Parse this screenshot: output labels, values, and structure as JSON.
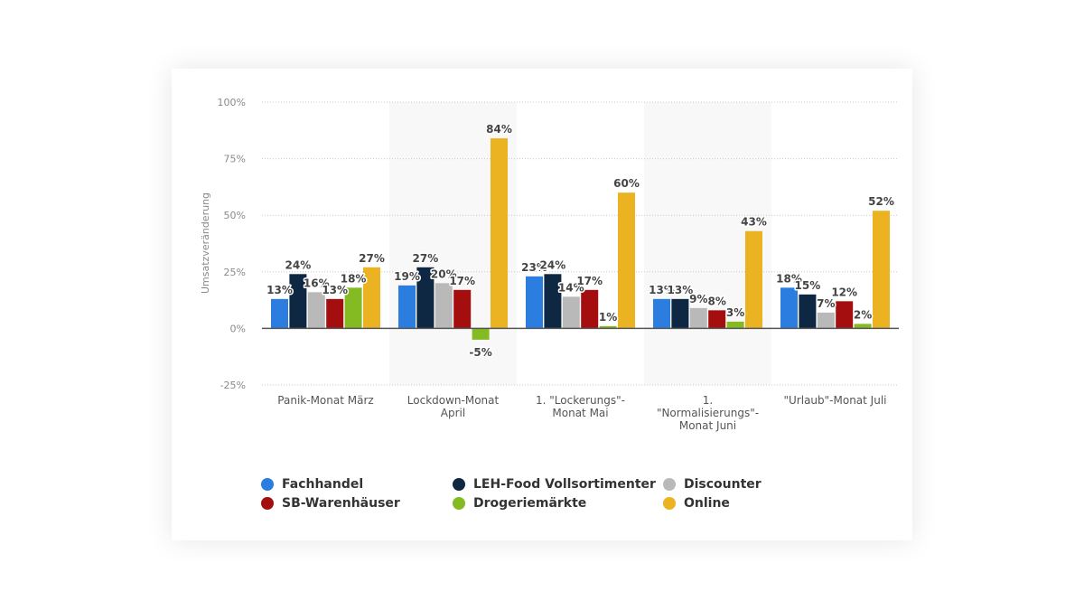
{
  "chart_data": {
    "type": "bar",
    "title": "",
    "xlabel": "",
    "ylabel": "Umsatzveränderung",
    "ylim": [
      -25,
      100
    ],
    "yticks": [
      100,
      75,
      50,
      25,
      0,
      -25
    ],
    "ytick_labels": [
      "100%",
      "75%",
      "50%",
      "25%",
      "0%",
      "-25%"
    ],
    "grid": true,
    "legend_position": "bottom",
    "categories": [
      [
        "Panik-Monat März"
      ],
      [
        "Lockdown-Monat",
        "April"
      ],
      [
        "1. \"Lockerungs\"-",
        "Monat Mai"
      ],
      [
        "1.",
        "\"Normalisierungs\"-",
        "Monat Juni"
      ],
      [
        "\"Urlaub\"-Monat Juli"
      ]
    ],
    "series": [
      {
        "name": "Fachhandel",
        "color": "#2b7ee0",
        "values": [
          13,
          19,
          23,
          13,
          18
        ],
        "labels": [
          "13%",
          "19%",
          "23%",
          "13%",
          "18%"
        ]
      },
      {
        "name": "LEH-Food Vollsortimenter",
        "color": "#0e2742",
        "values": [
          24,
          27,
          24,
          13,
          15
        ],
        "labels": [
          "24%",
          "27%",
          "24%",
          "13%",
          "15%"
        ]
      },
      {
        "name": "Discounter",
        "color": "#b9b9b9",
        "values": [
          16,
          20,
          14,
          9,
          7
        ],
        "labels": [
          "16%",
          "20%",
          "14%",
          "9%",
          "7%"
        ]
      },
      {
        "name": "SB-Warenhäuser",
        "color": "#a50e0e",
        "values": [
          13,
          17,
          17,
          8,
          12
        ],
        "labels": [
          "13%",
          "17%",
          "17%",
          "8%",
          "12%"
        ]
      },
      {
        "name": "Drogeriemärkte",
        "color": "#84bb23",
        "values": [
          18,
          -5,
          1,
          3,
          2
        ],
        "labels": [
          "18%",
          "-5%",
          "1%",
          "3%",
          "2%"
        ]
      },
      {
        "name": "Online",
        "color": "#ebb321",
        "values": [
          27,
          84,
          60,
          43,
          52
        ],
        "labels": [
          "27%",
          "84%",
          "60%",
          "43%",
          "52%"
        ]
      }
    ]
  }
}
